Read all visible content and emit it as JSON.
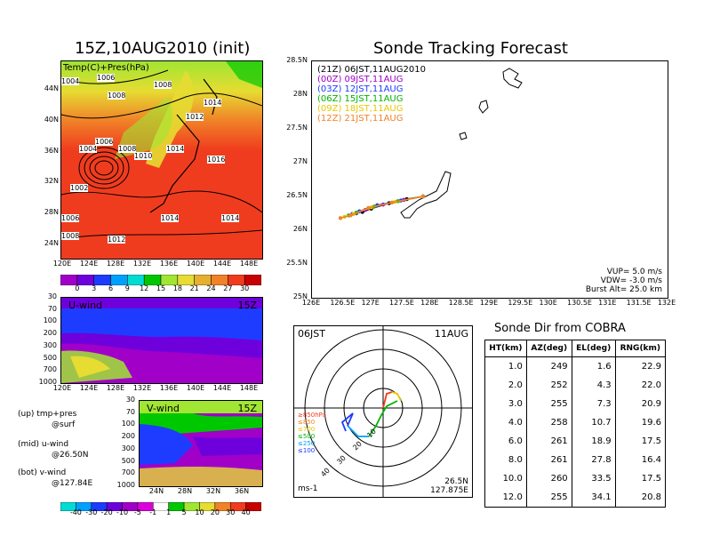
{
  "left_title": "15Z,10AUG2010 (init)",
  "map_top": {
    "label": "Temp(C)+Pres(hPa)",
    "x_ticks": [
      "120E",
      "124E",
      "128E",
      "132E",
      "136E",
      "140E",
      "144E",
      "148E"
    ],
    "y_ticks": [
      "44N",
      "40N",
      "36N",
      "32N",
      "28N",
      "24N"
    ],
    "isobars": [
      "1004",
      "1006",
      "1008",
      "1008",
      "1012",
      "1014",
      "1004",
      "1006",
      "1008",
      "1010",
      "1014",
      "1016",
      "1002",
      "1006",
      "1014",
      "1014",
      "1008",
      "1012"
    ]
  },
  "colorbar_top": {
    "ticks": [
      "0",
      "3",
      "6",
      "9",
      "12",
      "15",
      "18",
      "21",
      "24",
      "27",
      "30"
    ],
    "colors": [
      "#a000c8",
      "#6e00dc",
      "#1e3cff",
      "#00a0ff",
      "#00dcd2",
      "#00c800",
      "#a0e632",
      "#e6dc32",
      "#e6af2d",
      "#f08228",
      "#f03c1e",
      "#c80000"
    ]
  },
  "uwind": {
    "label": "U-wind",
    "time": "15Z",
    "y_ticks": [
      "30",
      "70",
      "100",
      "200",
      "300",
      "500",
      "700",
      "1000"
    ],
    "x_ticks": [
      "120E",
      "124E",
      "128E",
      "132E",
      "136E",
      "140E",
      "144E",
      "148E"
    ]
  },
  "vwind": {
    "label": "V-wind",
    "time": "15Z",
    "y_ticks": [
      "30",
      "70",
      "100",
      "200",
      "300",
      "500",
      "700",
      "1000"
    ],
    "x_ticks": [
      "24N",
      "28N",
      "32N",
      "36N"
    ]
  },
  "notes": {
    "up": "(up) tmp+pres",
    "up2": "@surf",
    "mid": "(mid) u-wind",
    "mid2": "@26.50N",
    "bot": "(bot) v-wind",
    "bot2": "@127.84E"
  },
  "colorbar_bottom": {
    "ticks": [
      "-40",
      "-30",
      "-20",
      "-10",
      "-5",
      "-1",
      "1",
      "5",
      "10",
      "20",
      "30",
      "40"
    ],
    "colors": [
      "#00dcd2",
      "#00a0ff",
      "#1e3cff",
      "#6e00dc",
      "#a000c8",
      "#dc00dc",
      "#ffffff",
      "#00c800",
      "#a0e632",
      "#e6dc32",
      "#f08228",
      "#f03c1e",
      "#c80000"
    ]
  },
  "right_title": "Sonde Tracking Forecast",
  "track_legend": [
    {
      "text": "(21Z) 06JST,11AUG2010",
      "color": "#000000"
    },
    {
      "text": "(00Z) 09JST,11AUG",
      "color": "#a000c8"
    },
    {
      "text": "(03Z) 12JST,11AUG",
      "color": "#1e3cff"
    },
    {
      "text": "(06Z) 15JST,11AUG",
      "color": "#00b400"
    },
    {
      "text": "(09Z) 18JST,11AUG",
      "color": "#e6c800"
    },
    {
      "text": "(12Z) 21JST,11AUG",
      "color": "#f08228"
    }
  ],
  "track_params": {
    "vup": "VUP=  5.0  m/s",
    "vdw": "VDW= -3.0  m/s",
    "burst": "Burst Alt= 25.0  km"
  },
  "chart_data": {
    "type": "scatter",
    "title": "Sonde Tracking Forecast",
    "xlim": [
      126,
      132
    ],
    "ylim": [
      25,
      28.5
    ],
    "x_ticks": [
      "126E",
      "126.5E",
      "127E",
      "127.5E",
      "128E",
      "128.5E",
      "129E",
      "129.5E",
      "130E",
      "130.5E",
      "131E",
      "131.5E",
      "132E"
    ],
    "y_ticks": [
      "28.5N",
      "28N",
      "27.5N",
      "27N",
      "26.5N",
      "26N",
      "25.5N",
      "25N"
    ],
    "series": [
      {
        "name": "(21Z) 06JST,11AUG2010",
        "color": "#000000",
        "x": [
          127.875,
          127.6,
          127.3,
          127.0,
          126.85
        ],
        "y": [
          26.5,
          26.46,
          26.4,
          26.32,
          26.27
        ]
      },
      {
        "name": "(00Z) 09JST,11AUG",
        "color": "#a000c8",
        "x": [
          127.875,
          127.55,
          127.2,
          126.9,
          126.75
        ],
        "y": [
          26.5,
          26.45,
          26.38,
          26.3,
          26.25
        ]
      },
      {
        "name": "(03Z) 12JST,11AUG",
        "color": "#1e3cff",
        "x": [
          127.875,
          127.5,
          127.1,
          126.8,
          126.68
        ],
        "y": [
          26.5,
          26.44,
          26.37,
          26.28,
          26.24
        ]
      },
      {
        "name": "(06Z) 15JST,11AUG",
        "color": "#00b400",
        "x": [
          127.875,
          127.45,
          127.05,
          126.75,
          126.62
        ],
        "y": [
          26.5,
          26.43,
          26.35,
          26.26,
          26.22
        ]
      },
      {
        "name": "(09Z) 18JST,11AUG",
        "color": "#e6c800",
        "x": [
          127.875,
          127.4,
          127.0,
          126.7,
          126.55
        ],
        "y": [
          26.5,
          26.42,
          26.34,
          26.24,
          26.2
        ]
      },
      {
        "name": "(12Z) 21JST,11AUG",
        "color": "#f08228",
        "x": [
          127.875,
          127.35,
          126.95,
          126.65,
          126.48
        ],
        "y": [
          26.5,
          26.41,
          26.33,
          26.22,
          26.18
        ]
      }
    ]
  },
  "polar": {
    "time_label": "06JST",
    "date_label": "11AUG",
    "pressure_labels": [
      {
        "text": "≥850hPa",
        "color": "#f03c1e"
      },
      {
        "text": "≤850",
        "color": "#f08228"
      },
      {
        "text": "≤700",
        "color": "#e6c800"
      },
      {
        "text": "≤500",
        "color": "#00b400"
      },
      {
        "text": "≤250",
        "color": "#00a0ff"
      },
      {
        "text": "≤100",
        "color": "#1e3cff"
      }
    ],
    "ring_labels": [
      "10",
      "20",
      "30",
      "40"
    ],
    "unit": "ms-1",
    "lat": "26.5N",
    "lon": "127.875E"
  },
  "sonde_dir": {
    "title": "Sonde Dir from COBRA",
    "columns": [
      "HT(km)",
      "AZ(deg)",
      "EL(deg)",
      "RNG(km)"
    ],
    "rows": [
      [
        "1.0",
        "249",
        "1.6",
        "22.9"
      ],
      [
        "2.0",
        "252",
        "4.3",
        "22.0"
      ],
      [
        "3.0",
        "255",
        "7.3",
        "20.9"
      ],
      [
        "4.0",
        "258",
        "10.7",
        "19.6"
      ],
      [
        "6.0",
        "261",
        "18.9",
        "17.5"
      ],
      [
        "8.0",
        "261",
        "27.8",
        "16.4"
      ],
      [
        "10.0",
        "260",
        "33.5",
        "17.5"
      ],
      [
        "12.0",
        "255",
        "34.1",
        "20.8"
      ]
    ]
  }
}
